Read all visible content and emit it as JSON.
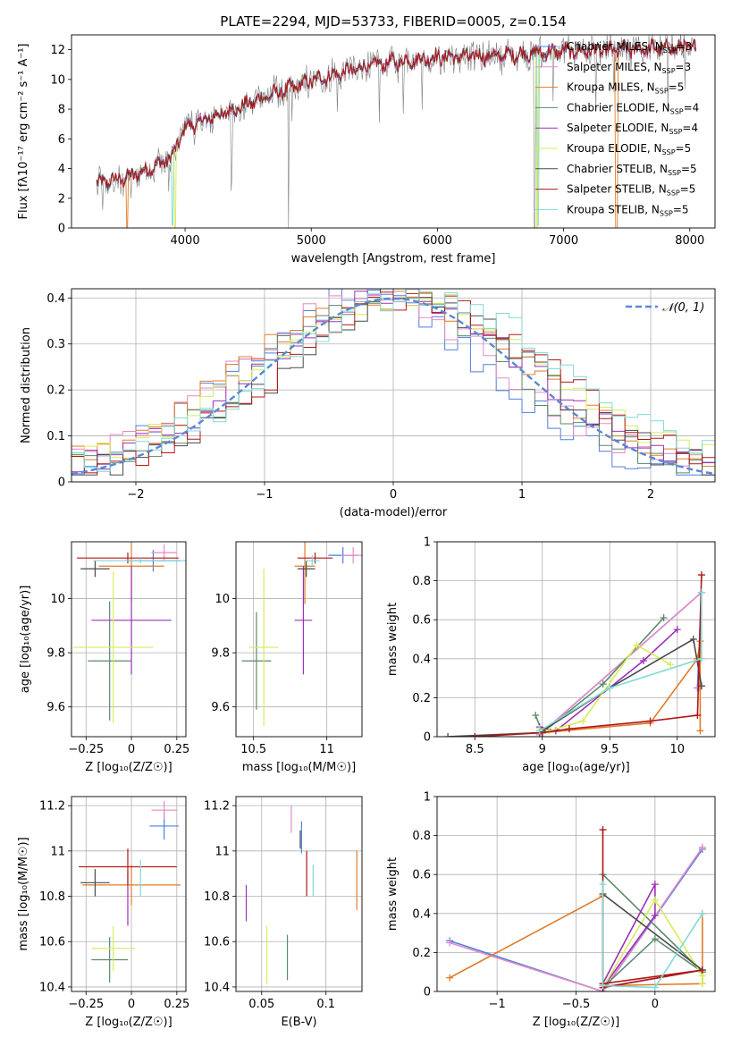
{
  "figure_title": "PLATE=2294, MJD=53733, FIBERID=0005, z=0.154",
  "colors": {
    "Chabrier MILES": "#4f7fe0",
    "Salpeter MILES": "#e58ac7",
    "Kroupa MILES": "#e07b28",
    "Chabrier ELODIE": "#5a8a6a",
    "Salpeter ELODIE": "#9b30b8",
    "Kroupa ELODIE": "#d8ec5a",
    "Chabrier STELIB": "#4a4a4a",
    "Salpeter STELIB": "#b01818",
    "Kroupa STELIB": "#7fdad8"
  },
  "chart_data": [
    {
      "id": "spectrum",
      "type": "line",
      "xlabel": "wavelength [Angstrom, rest frame]",
      "ylabel": "Flux [fλ10⁻¹⁷ erg cm⁻² s⁻¹ A⁻¹]",
      "xlim": [
        3100,
        8200
      ],
      "ylim": [
        0,
        13
      ],
      "xticks": [
        4000,
        5000,
        6000,
        7000,
        8000
      ],
      "yticks": [
        0,
        2,
        4,
        6,
        8,
        10,
        12
      ],
      "grid": false,
      "legend_position": "top-right",
      "legend": [
        "Chabrier MILES, N_SSP=3",
        "Salpeter MILES, N_SSP=3",
        "Kroupa MILES, N_SSP=5",
        "Chabrier ELODIE, N_SSP=4",
        "Salpeter ELODIE, N_SSP=4",
        "Kroupa ELODIE, N_SSP=5",
        "Chabrier STELIB, N_SSP=5",
        "Salpeter STELIB, N_SSP=5",
        "Kroupa STELIB, N_SSP=5"
      ],
      "continuum": [
        [
          3300,
          3.0
        ],
        [
          3500,
          3.3
        ],
        [
          3700,
          3.9
        ],
        [
          3900,
          4.8
        ],
        [
          4000,
          6.8
        ],
        [
          4300,
          7.7
        ],
        [
          4600,
          8.7
        ],
        [
          5000,
          9.9
        ],
        [
          5500,
          11.0
        ],
        [
          6000,
          11.5
        ],
        [
          6500,
          11.6
        ],
        [
          7000,
          11.9
        ],
        [
          7400,
          12.0
        ],
        [
          7800,
          12.1
        ],
        [
          8050,
          12.2
        ]
      ]
    },
    {
      "id": "residual_hist",
      "type": "line",
      "xlabel": "(data-model)/error",
      "ylabel": "Normed distribution",
      "xlim": [
        -2.5,
        2.5
      ],
      "ylim": [
        0,
        0.42
      ],
      "xticks": [
        -2,
        -1,
        0,
        1,
        2
      ],
      "yticks": [
        0.0,
        0.1,
        0.2,
        0.3,
        0.4
      ],
      "grid": true,
      "legend_position": "top-right",
      "legend": [
        "𝒩(0, 1)"
      ]
    },
    {
      "id": "age_vs_Z",
      "type": "scatter",
      "xlabel": "Z [log₁₀(Z/Z☉)]",
      "ylabel": "age  [log₁₀(age/yr)]",
      "xlim": [
        -0.33,
        0.3
      ],
      "ylim": [
        9.49,
        10.21
      ],
      "xticks": [
        -0.25,
        0.0,
        0.25
      ],
      "yticks": [
        9.6,
        9.8,
        10.0
      ],
      "grid": true,
      "points": [
        {
          "series": "Chabrier MILES",
          "x": 0.12,
          "xerr": 0.15,
          "y": 10.14,
          "yerr": 0.04
        },
        {
          "series": "Salpeter MILES",
          "x": 0.18,
          "xerr": 0.07,
          "y": 10.17,
          "yerr": 0.03
        },
        {
          "series": "Kroupa MILES",
          "x": 0.0,
          "xerr": 0.18,
          "y": 10.12,
          "yerr": 0.13
        },
        {
          "series": "Chabrier ELODIE",
          "x": -0.12,
          "xerr": 0.12,
          "y": 9.77,
          "yerr": 0.22
        },
        {
          "series": "Salpeter ELODIE",
          "x": 0.0,
          "xerr": 0.22,
          "y": 9.92,
          "yerr": 0.2
        },
        {
          "series": "Kroupa ELODIE",
          "x": -0.1,
          "xerr": 0.22,
          "y": 9.82,
          "yerr": 0.28
        },
        {
          "series": "Chabrier STELIB",
          "x": -0.2,
          "xerr": 0.08,
          "y": 10.11,
          "yerr": 0.03
        },
        {
          "series": "Salpeter STELIB",
          "x": -0.02,
          "xerr": 0.28,
          "y": 10.15,
          "yerr": 0.02
        },
        {
          "series": "Kroupa STELIB",
          "x": 0.05,
          "xerr": 0.26,
          "y": 10.14,
          "yerr": 0.01
        }
      ]
    },
    {
      "id": "age_vs_mass",
      "type": "scatter",
      "xlabel": "mass [log₁₀(M/M☉)]",
      "ylabel": "",
      "xlim": [
        10.38,
        11.24
      ],
      "ylim": [
        9.49,
        10.21
      ],
      "xticks": [
        10.5,
        11.0
      ],
      "yticks": [
        9.6,
        9.8,
        10.0
      ],
      "grid": true,
      "points": [
        {
          "series": "Chabrier MILES",
          "x": 11.11,
          "xerr": 0.1,
          "y": 10.16,
          "yerr": 0.03
        },
        {
          "series": "Salpeter MILES",
          "x": 11.18,
          "xerr": 0.08,
          "y": 10.16,
          "yerr": 0.03
        },
        {
          "series": "Kroupa MILES",
          "x": 10.85,
          "xerr": 0.07,
          "y": 10.12,
          "yerr": 0.14
        },
        {
          "series": "Chabrier ELODIE",
          "x": 10.52,
          "xerr": 0.1,
          "y": 9.77,
          "yerr": 0.18
        },
        {
          "series": "Salpeter ELODIE",
          "x": 10.84,
          "xerr": 0.06,
          "y": 9.92,
          "yerr": 0.2
        },
        {
          "series": "Kroupa ELODIE",
          "x": 10.57,
          "xerr": 0.1,
          "y": 9.82,
          "yerr": 0.29
        },
        {
          "series": "Chabrier STELIB",
          "x": 10.86,
          "xerr": 0.06,
          "y": 10.11,
          "yerr": 0.03
        },
        {
          "series": "Salpeter STELIB",
          "x": 10.92,
          "xerr": 0.12,
          "y": 10.15,
          "yerr": 0.02
        },
        {
          "series": "Kroupa STELIB",
          "x": 10.9,
          "xerr": 0.05,
          "y": 10.14,
          "yerr": 0.02
        }
      ]
    },
    {
      "id": "weight_vs_age",
      "type": "line",
      "xlabel": "age  [log₁₀(age/yr)]",
      "ylabel": "mass weight",
      "xlim": [
        8.22,
        10.28
      ],
      "ylim": [
        0,
        1
      ],
      "xticks": [
        8.5,
        9.0,
        9.5,
        10.0
      ],
      "yticks": [
        0.0,
        0.2,
        0.4,
        0.6,
        0.8,
        1.0
      ],
      "grid": true,
      "series": [
        {
          "name": "Chabrier MILES",
          "x": [
            8.98,
            10.18,
            10.15
          ],
          "y": [
            0.01,
            0.74,
            0.25
          ]
        },
        {
          "name": "Salpeter MILES",
          "x": [
            8.98,
            10.18,
            10.16
          ],
          "y": [
            0.01,
            0.74,
            0.25
          ]
        },
        {
          "name": "Kroupa MILES",
          "x": [
            9.0,
            9.8,
            10.15,
            10.17,
            10.17
          ],
          "y": [
            0.02,
            0.07,
            0.4,
            0.49,
            0.03
          ]
        },
        {
          "name": "Chabrier ELODIE",
          "x": [
            8.95,
            9.0,
            9.45,
            9.9
          ],
          "y": [
            0.11,
            0.02,
            0.27,
            0.61
          ]
        },
        {
          "name": "Salpeter ELODIE",
          "x": [
            8.98,
            9.1,
            9.75,
            10.0
          ],
          "y": [
            0.05,
            0.03,
            0.39,
            0.55
          ]
        },
        {
          "name": "Kroupa ELODIE",
          "x": [
            8.98,
            9.05,
            9.3,
            9.7,
            9.95
          ],
          "y": [
            0.04,
            0.03,
            0.08,
            0.47,
            0.37
          ]
        },
        {
          "name": "Chabrier STELIB",
          "x": [
            8.3,
            8.98,
            9.0,
            9.5,
            10.12,
            10.18
          ],
          "y": [
            0.0,
            0.02,
            0.03,
            0.25,
            0.5,
            0.26
          ]
        },
        {
          "name": "Salpeter STELIB",
          "x": [
            8.5,
            9.0,
            9.2,
            9.8,
            10.15,
            10.18
          ],
          "y": [
            0.0,
            0.02,
            0.04,
            0.08,
            0.11,
            0.83
          ]
        },
        {
          "name": "Kroupa STELIB",
          "x": [
            8.98,
            9.5,
            10.18,
            10.18
          ],
          "y": [
            0.03,
            0.25,
            0.4,
            0.74
          ]
        }
      ]
    },
    {
      "id": "mass_vs_Z",
      "type": "scatter",
      "xlabel": "Z [log₁₀(Z/Z☉)]",
      "ylabel": "mass [log₁₀(M/M☉)]",
      "xlim": [
        -0.33,
        0.3
      ],
      "ylim": [
        10.38,
        11.24
      ],
      "xticks": [
        -0.25,
        0.0,
        0.25
      ],
      "yticks": [
        10.4,
        10.6,
        10.8,
        11.0,
        11.2
      ],
      "grid": true,
      "points": [
        {
          "series": "Chabrier MILES",
          "x": 0.18,
          "xerr": 0.08,
          "y": 11.11,
          "yerr": 0.06
        },
        {
          "series": "Salpeter MILES",
          "x": 0.18,
          "xerr": 0.07,
          "y": 11.18,
          "yerr": 0.04
        },
        {
          "series": "Kroupa MILES",
          "x": 0.0,
          "xerr": 0.27,
          "y": 10.85,
          "yerr": 0.09
        },
        {
          "series": "Chabrier ELODIE",
          "x": -0.12,
          "xerr": 0.1,
          "y": 10.52,
          "yerr": 0.1
        },
        {
          "series": "Salpeter ELODIE",
          "x": -0.02,
          "xerr": 0.0,
          "y": 10.79,
          "yerr": 0.12
        },
        {
          "series": "Kroupa ELODIE",
          "x": -0.1,
          "xerr": 0.12,
          "y": 10.57,
          "yerr": 0.1
        },
        {
          "series": "Chabrier STELIB",
          "x": -0.2,
          "xerr": 0.08,
          "y": 10.86,
          "yerr": 0.06
        },
        {
          "series": "Salpeter STELIB",
          "x": -0.02,
          "xerr": 0.27,
          "y": 10.93,
          "yerr": 0.08
        },
        {
          "series": "Kroupa STELIB",
          "x": 0.05,
          "xerr": 0.0,
          "y": 10.88,
          "yerr": 0.08
        }
      ]
    },
    {
      "id": "mass_vs_EBV",
      "type": "scatter",
      "xlabel": "E(B-V)",
      "ylabel": "",
      "xlim": [
        0.03,
        0.128
      ],
      "ylim": [
        10.38,
        11.24
      ],
      "xticks": [
        0.05,
        0.1
      ],
      "yticks": [
        10.4,
        10.6,
        10.8,
        11.0,
        11.2
      ],
      "grid": true,
      "points": [
        {
          "series": "Chabrier MILES",
          "x": 0.081,
          "xerr": 0.0,
          "y": 11.06,
          "yerr": 0.07
        },
        {
          "series": "Salpeter MILES",
          "x": 0.073,
          "xerr": 0.0,
          "y": 11.14,
          "yerr": 0.06
        },
        {
          "series": "Kroupa MILES",
          "x": 0.124,
          "xerr": 0.0,
          "y": 10.87,
          "yerr": 0.13
        },
        {
          "series": "Chabrier ELODIE",
          "x": 0.07,
          "xerr": 0.0,
          "y": 10.53,
          "yerr": 0.1
        },
        {
          "series": "Salpeter ELODIE",
          "x": 0.038,
          "xerr": 0.0,
          "y": 10.77,
          "yerr": 0.08
        },
        {
          "series": "Kroupa ELODIE",
          "x": 0.054,
          "xerr": 0.0,
          "y": 10.54,
          "yerr": 0.13
        },
        {
          "series": "Chabrier STELIB",
          "x": 0.08,
          "xerr": 0.0,
          "y": 11.05,
          "yerr": 0.04
        },
        {
          "series": "Salpeter STELIB",
          "x": 0.085,
          "xerr": 0.0,
          "y": 10.9,
          "yerr": 0.1
        },
        {
          "series": "Kroupa STELIB",
          "x": 0.09,
          "xerr": 0.0,
          "y": 10.87,
          "yerr": 0.07
        }
      ]
    },
    {
      "id": "weight_vs_Z",
      "type": "line",
      "xlabel": "Z [log₁₀(Z/Z☉)]",
      "ylabel": "mass weight",
      "xlim": [
        -1.38,
        0.38
      ],
      "ylim": [
        0,
        1
      ],
      "xticks": [
        -1.0,
        -0.5,
        0.0
      ],
      "yticks": [
        0.0,
        0.2,
        0.4,
        0.6,
        0.8,
        1.0
      ],
      "grid": true,
      "series": [
        {
          "name": "Chabrier MILES",
          "x": [
            -1.3,
            -0.33,
            0.3
          ],
          "y": [
            0.26,
            0.0,
            0.73
          ]
        },
        {
          "name": "Salpeter MILES",
          "x": [
            -1.3,
            -0.33,
            0.3
          ],
          "y": [
            0.25,
            0.0,
            0.74
          ]
        },
        {
          "name": "Kroupa MILES",
          "x": [
            -1.3,
            -0.33,
            -0.33,
            0.3,
            0.3
          ],
          "y": [
            0.07,
            0.49,
            0.03,
            0.04,
            0.4
          ]
        },
        {
          "name": "Chabrier ELODIE",
          "x": [
            -0.33,
            0.0,
            0.3,
            -0.33
          ],
          "y": [
            0.02,
            0.27,
            0.1,
            0.6
          ]
        },
        {
          "name": "Salpeter ELODIE",
          "x": [
            -0.33,
            0.0,
            0.0,
            -0.33
          ],
          "y": [
            0.02,
            0.39,
            0.55,
            0.04
          ]
        },
        {
          "name": "Kroupa ELODIE",
          "x": [
            -0.33,
            0.0,
            0.3,
            0.3
          ],
          "y": [
            0.02,
            0.47,
            0.08,
            0.04
          ]
        },
        {
          "name": "Chabrier STELIB",
          "x": [
            -0.33,
            0.3,
            -0.33
          ],
          "y": [
            0.02,
            0.11,
            0.5
          ]
        },
        {
          "name": "Salpeter STELIB",
          "x": [
            -0.33,
            -0.33,
            0.3,
            -0.33
          ],
          "y": [
            0.83,
            0.04,
            0.11,
            0.02
          ]
        },
        {
          "name": "Kroupa STELIB",
          "x": [
            -0.33,
            -0.33,
            0.0,
            0.3
          ],
          "y": [
            0.55,
            0.03,
            0.02,
            0.4
          ]
        }
      ]
    }
  ]
}
